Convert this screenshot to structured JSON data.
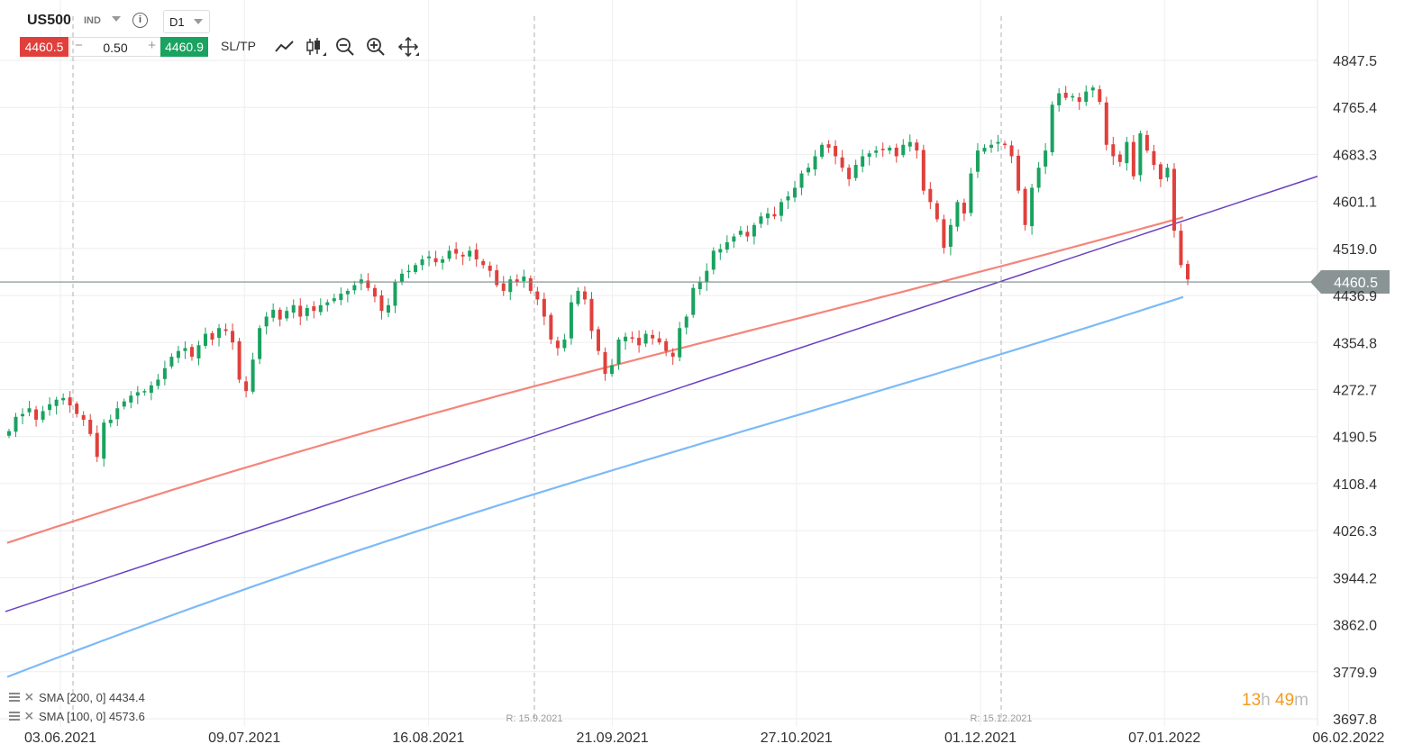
{
  "header": {
    "symbol": "US500",
    "badge": "IND",
    "info_icon": "info-icon",
    "timeframe": "D1",
    "sell_price": "4460.5",
    "buy_price": "4460.9",
    "quantity": "0.50",
    "sltp_label": "SL/TP",
    "tools": [
      "line-chart-icon",
      "candlestick-icon",
      "zoom-out-icon",
      "zoom-in-icon",
      "move-icon"
    ]
  },
  "colors": {
    "up": "#1aa260",
    "down": "#e0403c",
    "sma100": "#f4857a",
    "sma200": "#7cbaf7",
    "trend": "#6a3fc4",
    "price_line": "#7d8a8a",
    "price_badge": "#8a9494"
  },
  "indicators": [
    {
      "label": "SMA [200, 0] 4434.4"
    },
    {
      "label": "SMA [100, 0] 4573.6"
    }
  ],
  "countdown": {
    "hours": "13",
    "h": "h",
    "minutes": "49",
    "m": "m"
  },
  "chart_data": {
    "type": "candlestick",
    "instrument": "US500",
    "timeframe": "D1",
    "x_labels": [
      "03.06.2021",
      "09.07.2021",
      "16.08.2021",
      "21.09.2021",
      "27.10.2021",
      "01.12.2021",
      "07.01.2022",
      "06.02.2022"
    ],
    "y_ticks": [
      "4847.5",
      "4765.4",
      "4683.3",
      "4601.1",
      "4519.0",
      "4436.9",
      "4354.8",
      "4272.7",
      "4190.5",
      "4108.4",
      "4026.3",
      "3944.2",
      "3862.0",
      "3779.9",
      "3697.8"
    ],
    "ylim": [
      3697.8,
      4847.5
    ],
    "current_price": "4460.5",
    "markers": [
      {
        "label": "R: 15.9.2021",
        "date": "2021-09-15"
      },
      {
        "label": "R: 15.12.2021",
        "date": "2021-12-15"
      }
    ],
    "sma200": {
      "label": "SMA [200, 0] 4434.4",
      "start": 3771,
      "end": 4434.4
    },
    "sma100": {
      "label": "SMA [100, 0] 4573.6",
      "start": 4005,
      "end": 4573.6
    },
    "trendline": {
      "start": 3885,
      "end": 4645
    },
    "closes": [
      4200,
      4225,
      4230,
      4240,
      4220,
      4235,
      4247,
      4255,
      4258,
      4245,
      4230,
      4220,
      4195,
      4155,
      4215,
      4220,
      4240,
      4252,
      4262,
      4268,
      4270,
      4280,
      4290,
      4310,
      4330,
      4340,
      4345,
      4330,
      4350,
      4370,
      4360,
      4380,
      4375,
      4355,
      4290,
      4270,
      4325,
      4380,
      4400,
      4412,
      4395,
      4410,
      4420,
      4400,
      4415,
      4410,
      4420,
      4425,
      4432,
      4440,
      4445,
      4455,
      4465,
      4450,
      4435,
      4410,
      4420,
      4460,
      4475,
      4480,
      4490,
      4500,
      4505,
      4495,
      4500,
      4515,
      4510,
      4505,
      4515,
      4500,
      4490,
      4480,
      4455,
      4445,
      4465,
      4460,
      4470,
      4445,
      4430,
      4400,
      4360,
      4345,
      4360,
      4425,
      4445,
      4430,
      4375,
      4340,
      4300,
      4315,
      4360,
      4365,
      4362,
      4350,
      4370,
      4362,
      4355,
      4340,
      4330,
      4380,
      4400,
      4450,
      4460,
      4480,
      4515,
      4518,
      4530,
      4540,
      4550,
      4540,
      4560,
      4575,
      4580,
      4575,
      4600,
      4610,
      4625,
      4650,
      4660,
      4680,
      4700,
      4695,
      4680,
      4660,
      4640,
      4665,
      4680,
      4685,
      4690,
      4692,
      4695,
      4680,
      4700,
      4705,
      4690,
      4620,
      4600,
      4570,
      4520,
      4560,
      4600,
      4580,
      4650,
      4690,
      4695,
      4700,
      4705,
      4700,
      4680,
      4620,
      4560,
      4625,
      4660,
      4690,
      4770,
      4790,
      4782,
      4785,
      4775,
      4793,
      4800,
      4775,
      4700,
      4680,
      4670,
      4705,
      4645,
      4720,
      4690,
      4665,
      4640,
      4660,
      4550,
      4490,
      4465
    ]
  }
}
